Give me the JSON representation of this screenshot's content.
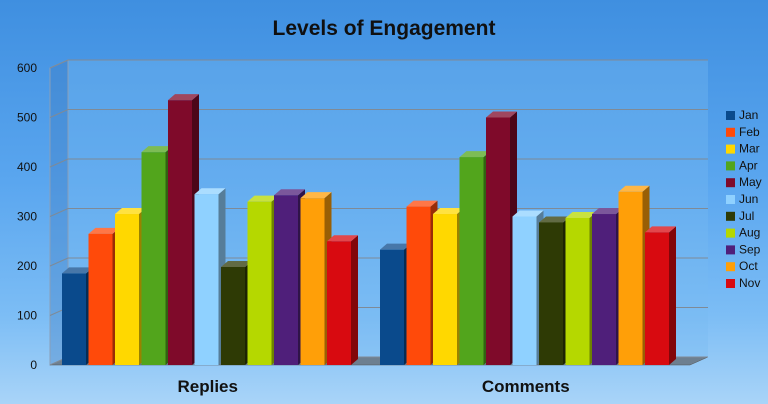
{
  "chart_data": {
    "type": "bar",
    "title": "Levels of Engagement",
    "categories": [
      "Replies",
      "Comments"
    ],
    "series": [
      {
        "name": "Jan",
        "color": "#0a4a8c",
        "values": [
          185,
          233
        ]
      },
      {
        "name": "Feb",
        "color": "#ff4a0a",
        "values": [
          265,
          320
        ]
      },
      {
        "name": "Mar",
        "color": "#ffd800",
        "values": [
          305,
          305
        ]
      },
      {
        "name": "Apr",
        "color": "#52a51c",
        "values": [
          430,
          420
        ]
      },
      {
        "name": "May",
        "color": "#7f0a2a",
        "values": [
          535,
          500
        ]
      },
      {
        "name": "Jun",
        "color": "#8fd1ff",
        "values": [
          345,
          300
        ]
      },
      {
        "name": "Jul",
        "color": "#2e3a05",
        "values": [
          198,
          288
        ]
      },
      {
        "name": "Aug",
        "color": "#b5d800",
        "values": [
          330,
          297
        ]
      },
      {
        "name": "Sep",
        "color": "#4f1f7a",
        "values": [
          343,
          305
        ]
      },
      {
        "name": "Oct",
        "color": "#ff9f08",
        "values": [
          337,
          350
        ]
      },
      {
        "name": "Nov",
        "color": "#d80a10",
        "values": [
          250,
          268
        ]
      }
    ],
    "ylim": [
      0,
      600
    ],
    "yticks": [
      0,
      100,
      200,
      300,
      400,
      500,
      600
    ],
    "grid": true,
    "legend": "right"
  }
}
